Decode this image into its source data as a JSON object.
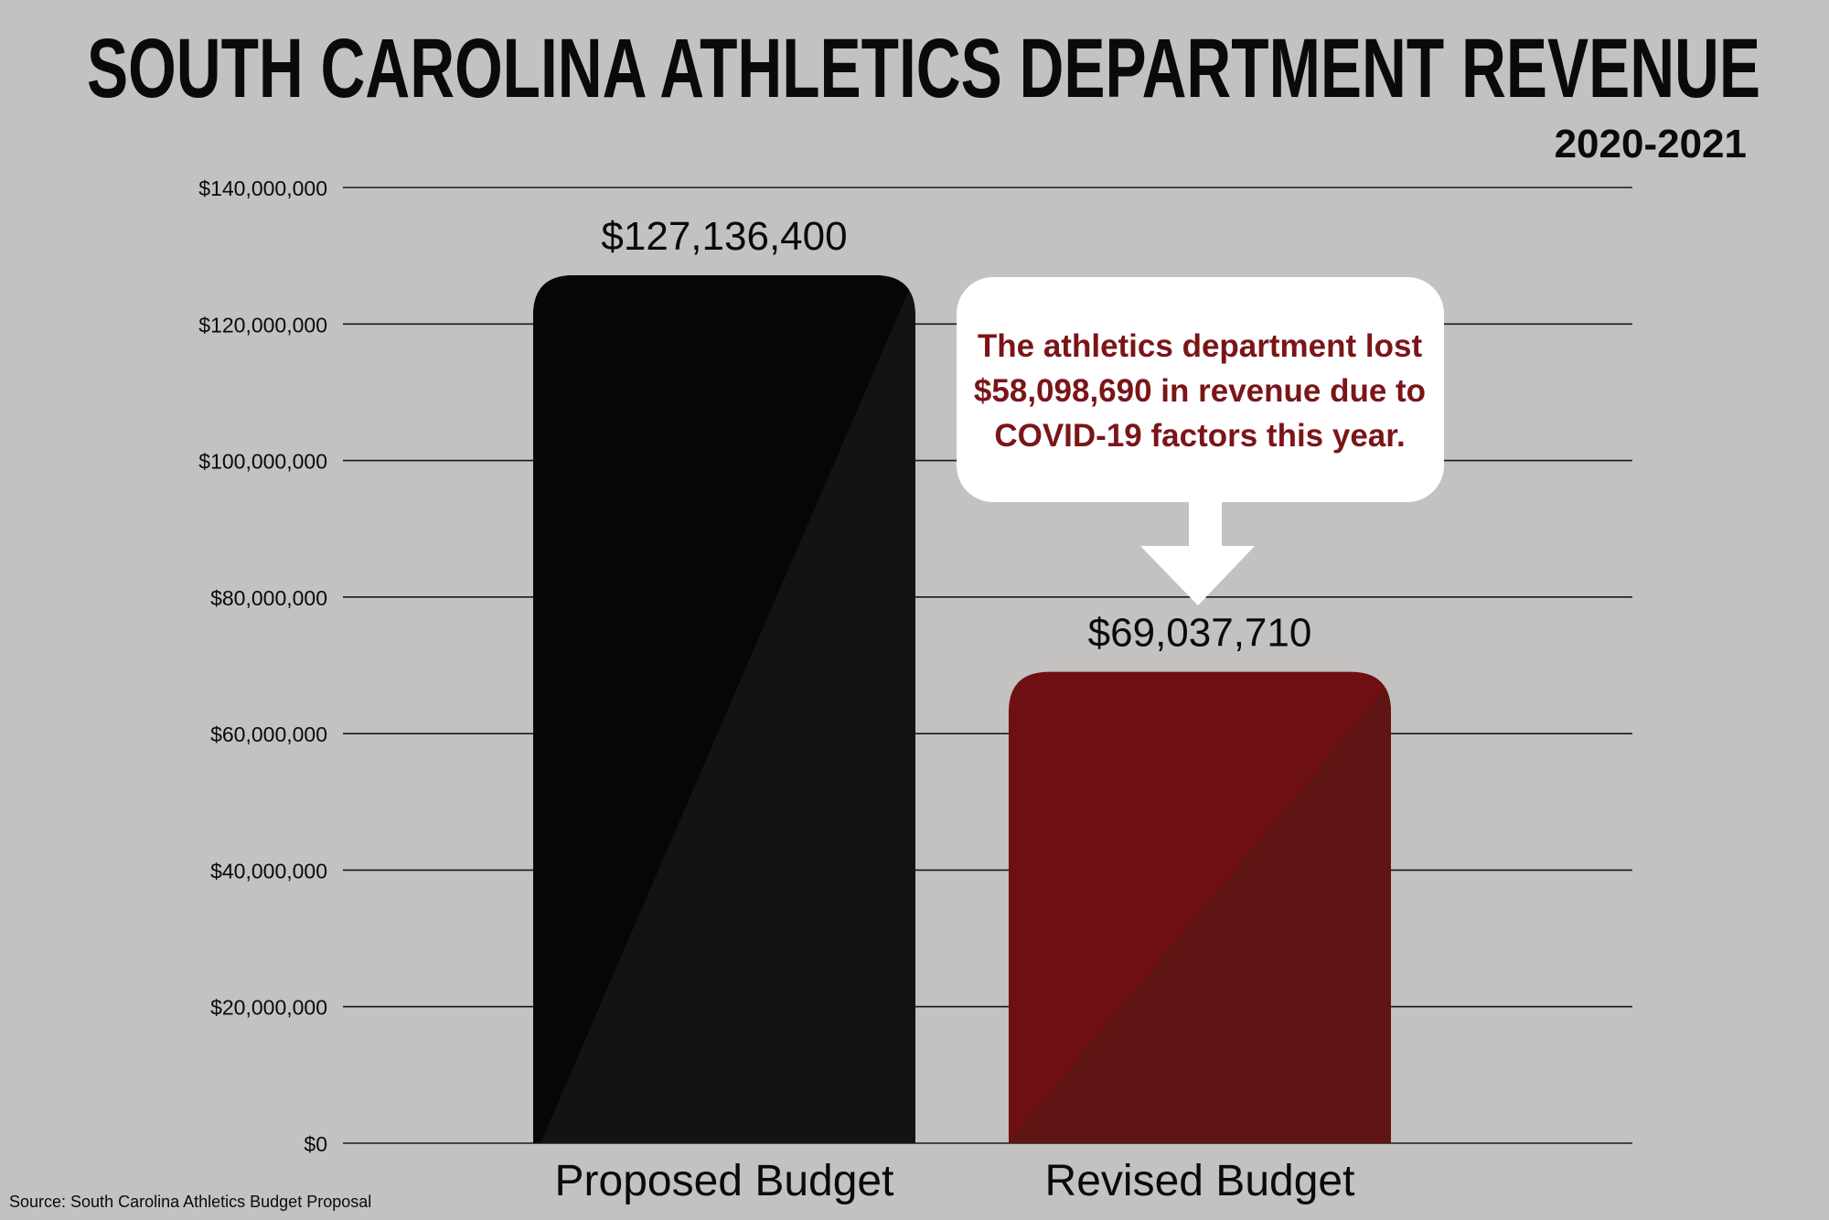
{
  "chart_data": {
    "type": "bar",
    "title": "SOUTH CAROLINA ATHLETICS DEPARTMENT REVENUE",
    "subtitle": "2020-2021",
    "categories": [
      "Proposed Budget",
      "Revised Budget"
    ],
    "values": [
      127136400,
      69037710
    ],
    "value_labels": [
      "$127,136,400",
      "$69,037,710"
    ],
    "colors": [
      "#131313",
      "#6e0f12"
    ],
    "shade_colors": [
      "#050707",
      "#5e1513"
    ],
    "ylim": [
      0,
      140000000
    ],
    "yticks": [
      0,
      20000000,
      40000000,
      60000000,
      80000000,
      100000000,
      120000000,
      140000000
    ],
    "ytick_labels": [
      "$0",
      "$20,000,000",
      "$40,000,000",
      "$60,000,000",
      "$80,000,000",
      "$100,000,000",
      "$120,000,000",
      "$140,000,000"
    ],
    "xlabel": "",
    "ylabel": "",
    "grid": true,
    "annotation": {
      "lines": [
        "The athletics department lost",
        "$58,098,690 in revenue due to",
        "COVID-19 factors this year."
      ],
      "color": "#7a1518",
      "points_to": "Revised Budget"
    },
    "source": "Source: South Carolina Athletics Budget Proposal"
  }
}
